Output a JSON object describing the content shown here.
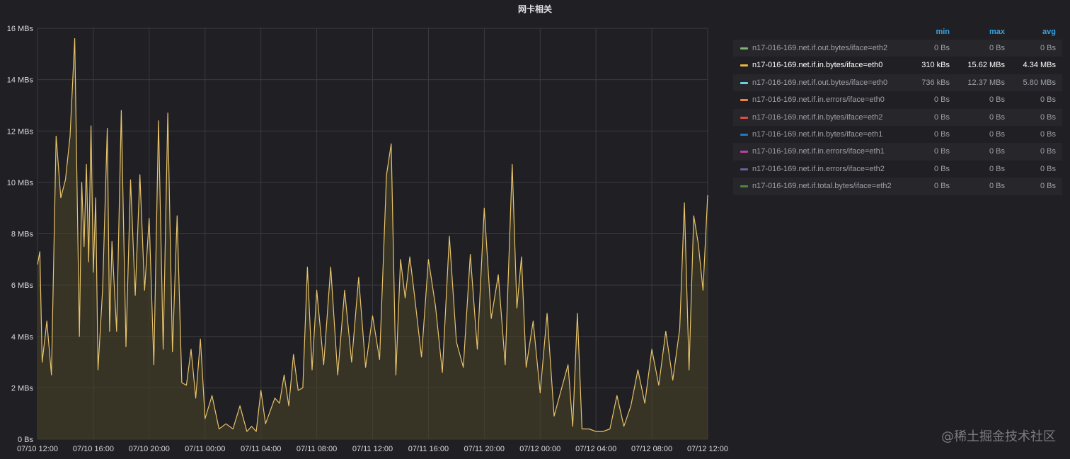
{
  "panel": {
    "title": "网卡相关"
  },
  "watermark": "@稀土掘金技术社区",
  "colors": {
    "background": "#202024",
    "grid": "#3a3a3f",
    "series_line": "#e8c36b",
    "series_fill": "#4a4326"
  },
  "legend": {
    "headers": {
      "min": "min",
      "max": "max",
      "avg": "avg"
    },
    "rows": [
      {
        "name": "n17-016-169.net.if.out.bytes/iface=eth2",
        "color": "#7eb26d",
        "min": "0 Bs",
        "max": "0 Bs",
        "avg": "0 Bs",
        "active": false
      },
      {
        "name": "n17-016-169.net.if.in.bytes/iface=eth0",
        "color": "#eab839",
        "min": "310 kBs",
        "max": "15.62 MBs",
        "avg": "4.34 MBs",
        "active": true
      },
      {
        "name": "n17-016-169.net.if.out.bytes/iface=eth0",
        "color": "#6ed0e0",
        "min": "736 kBs",
        "max": "12.37 MBs",
        "avg": "5.80 MBs",
        "active": false
      },
      {
        "name": "n17-016-169.net.if.in.errors/iface=eth0",
        "color": "#ef843c",
        "min": "0 Bs",
        "max": "0 Bs",
        "avg": "0 Bs",
        "active": false
      },
      {
        "name": "n17-016-169.net.if.in.bytes/iface=eth2",
        "color": "#e24d42",
        "min": "0 Bs",
        "max": "0 Bs",
        "avg": "0 Bs",
        "active": false
      },
      {
        "name": "n17-016-169.net.if.in.bytes/iface=eth1",
        "color": "#1f78c1",
        "min": "0 Bs",
        "max": "0 Bs",
        "avg": "0 Bs",
        "active": false
      },
      {
        "name": "n17-016-169.net.if.in.errors/iface=eth1",
        "color": "#ba43a9",
        "min": "0 Bs",
        "max": "0 Bs",
        "avg": "0 Bs",
        "active": false
      },
      {
        "name": "n17-016-169.net.if.in.errors/iface=eth2",
        "color": "#705da0",
        "min": "0 Bs",
        "max": "0 Bs",
        "avg": "0 Bs",
        "active": false
      },
      {
        "name": "n17-016-169.net.if.total.bytes/iface=eth2",
        "color": "#508642",
        "min": "0 Bs",
        "max": "0 Bs",
        "avg": "0 Bs",
        "active": false
      }
    ]
  },
  "chart_data": {
    "type": "area",
    "grid": true,
    "legend_position": "right",
    "ylim": [
      0,
      16
    ],
    "y_ticks": [
      {
        "value": 0,
        "label": "0 Bs"
      },
      {
        "value": 2,
        "label": "2 MBs"
      },
      {
        "value": 4,
        "label": "4 MBs"
      },
      {
        "value": 6,
        "label": "6 MBs"
      },
      {
        "value": 8,
        "label": "8 MBs"
      },
      {
        "value": 10,
        "label": "10 MBs"
      },
      {
        "value": 12,
        "label": "12 MBs"
      },
      {
        "value": 14,
        "label": "14 MBs"
      },
      {
        "value": 16,
        "label": "16 MBs"
      }
    ],
    "xlim": [
      "07/10 12:00",
      "07/12 12:00"
    ],
    "x_ticks": [
      {
        "value": "07/10 12:00",
        "label": "07/10 12:00"
      },
      {
        "value": "07/10 16:00",
        "label": "07/10 16:00"
      },
      {
        "value": "07/10 20:00",
        "label": "07/10 20:00"
      },
      {
        "value": "07/11 00:00",
        "label": "07/11 00:00"
      },
      {
        "value": "07/11 04:00",
        "label": "07/11 04:00"
      },
      {
        "value": "07/11 08:00",
        "label": "07/11 08:00"
      },
      {
        "value": "07/11 12:00",
        "label": "07/11 12:00"
      },
      {
        "value": "07/11 16:00",
        "label": "07/11 16:00"
      },
      {
        "value": "07/11 20:00",
        "label": "07/11 20:00"
      },
      {
        "value": "07/12 00:00",
        "label": "07/12 00:00"
      },
      {
        "value": "07/12 04:00",
        "label": "07/12 04:00"
      },
      {
        "value": "07/12 08:00",
        "label": "07/12 08:00"
      },
      {
        "value": "07/12 12:00",
        "label": "07/12 12:00"
      }
    ],
    "series": [
      {
        "name": "n17-016-169.net.if.in.bytes/iface=eth0",
        "x": [
          "07/10 12:00",
          "07/10 12:10",
          "07/10 12:20",
          "07/10 12:40",
          "07/10 13:00",
          "07/10 13:20",
          "07/10 13:40",
          "07/10 14:00",
          "07/10 14:20",
          "07/10 14:40",
          "07/10 15:00",
          "07/10 15:10",
          "07/10 15:20",
          "07/10 15:30",
          "07/10 15:40",
          "07/10 15:50",
          "07/10 16:00",
          "07/10 16:10",
          "07/10 16:20",
          "07/10 16:40",
          "07/10 17:00",
          "07/10 17:10",
          "07/10 17:20",
          "07/10 17:40",
          "07/10 18:00",
          "07/10 18:20",
          "07/10 18:40",
          "07/10 19:00",
          "07/10 19:20",
          "07/10 19:40",
          "07/10 20:00",
          "07/10 20:20",
          "07/10 20:40",
          "07/10 21:00",
          "07/10 21:20",
          "07/10 21:40",
          "07/10 22:00",
          "07/10 22:20",
          "07/10 22:40",
          "07/10 23:00",
          "07/10 23:20",
          "07/10 23:40",
          "07/11 00:00",
          "07/11 00:30",
          "07/11 01:00",
          "07/11 01:30",
          "07/11 02:00",
          "07/11 02:30",
          "07/11 03:00",
          "07/11 03:20",
          "07/11 03:40",
          "07/11 04:00",
          "07/11 04:20",
          "07/11 04:40",
          "07/11 05:00",
          "07/11 05:20",
          "07/11 05:40",
          "07/11 06:00",
          "07/11 06:20",
          "07/11 06:40",
          "07/11 07:00",
          "07/11 07:20",
          "07/11 07:40",
          "07/11 08:00",
          "07/11 08:30",
          "07/11 09:00",
          "07/11 09:30",
          "07/11 10:00",
          "07/11 10:30",
          "07/11 11:00",
          "07/11 11:30",
          "07/11 12:00",
          "07/11 12:30",
          "07/11 13:00",
          "07/11 13:20",
          "07/11 13:40",
          "07/11 14:00",
          "07/11 14:20",
          "07/11 14:40",
          "07/11 15:00",
          "07/11 15:30",
          "07/11 16:00",
          "07/11 16:30",
          "07/11 17:00",
          "07/11 17:30",
          "07/11 18:00",
          "07/11 18:30",
          "07/11 19:00",
          "07/11 19:30",
          "07/11 20:00",
          "07/11 20:30",
          "07/11 21:00",
          "07/11 21:30",
          "07/11 22:00",
          "07/11 22:20",
          "07/11 22:40",
          "07/11 23:00",
          "07/11 23:30",
          "07/12 00:00",
          "07/12 00:30",
          "07/12 01:00",
          "07/12 01:30",
          "07/12 02:00",
          "07/12 02:20",
          "07/12 02:40",
          "07/12 03:00",
          "07/12 03:30",
          "07/12 04:00",
          "07/12 04:30",
          "07/12 05:00",
          "07/12 05:30",
          "07/12 06:00",
          "07/12 06:30",
          "07/12 07:00",
          "07/12 07:30",
          "07/12 08:00",
          "07/12 08:30",
          "07/12 09:00",
          "07/12 09:30",
          "07/12 10:00",
          "07/12 10:20",
          "07/12 10:40",
          "07/12 11:00",
          "07/12 11:20",
          "07/12 11:40",
          "07/12 12:00"
        ],
        "values": [
          6.8,
          7.3,
          3.0,
          4.6,
          2.5,
          11.8,
          9.4,
          10.1,
          11.8,
          15.6,
          4.0,
          10.0,
          7.5,
          10.7,
          6.9,
          12.2,
          6.5,
          9.4,
          2.7,
          5.9,
          12.1,
          4.2,
          7.7,
          4.2,
          12.8,
          3.6,
          10.1,
          5.6,
          10.3,
          5.8,
          8.6,
          2.9,
          12.4,
          3.5,
          12.7,
          3.4,
          8.7,
          2.2,
          2.1,
          3.5,
          1.6,
          3.9,
          0.8,
          1.7,
          0.4,
          0.6,
          0.4,
          1.3,
          0.3,
          0.5,
          0.3,
          1.9,
          0.6,
          1.1,
          1.6,
          1.4,
          2.5,
          1.3,
          3.3,
          1.9,
          2.0,
          6.7,
          2.7,
          5.8,
          2.9,
          6.7,
          2.5,
          5.8,
          3.0,
          6.3,
          2.8,
          4.8,
          3.1,
          10.3,
          11.5,
          2.5,
          7.0,
          5.5,
          7.1,
          5.6,
          3.2,
          7.0,
          5.2,
          2.6,
          7.9,
          3.8,
          2.8,
          7.2,
          3.5,
          9.0,
          4.7,
          6.4,
          2.9,
          10.7,
          5.1,
          7.1,
          2.8,
          4.6,
          1.8,
          4.9,
          0.9,
          1.9,
          2.9,
          0.5,
          4.9,
          0.4,
          0.4,
          0.3,
          0.3,
          0.4,
          1.7,
          0.5,
          1.3,
          2.7,
          1.4,
          3.5,
          2.1,
          4.2,
          2.3,
          4.3,
          9.2,
          2.7,
          8.7,
          7.6,
          5.8,
          9.5
        ]
      }
    ]
  }
}
